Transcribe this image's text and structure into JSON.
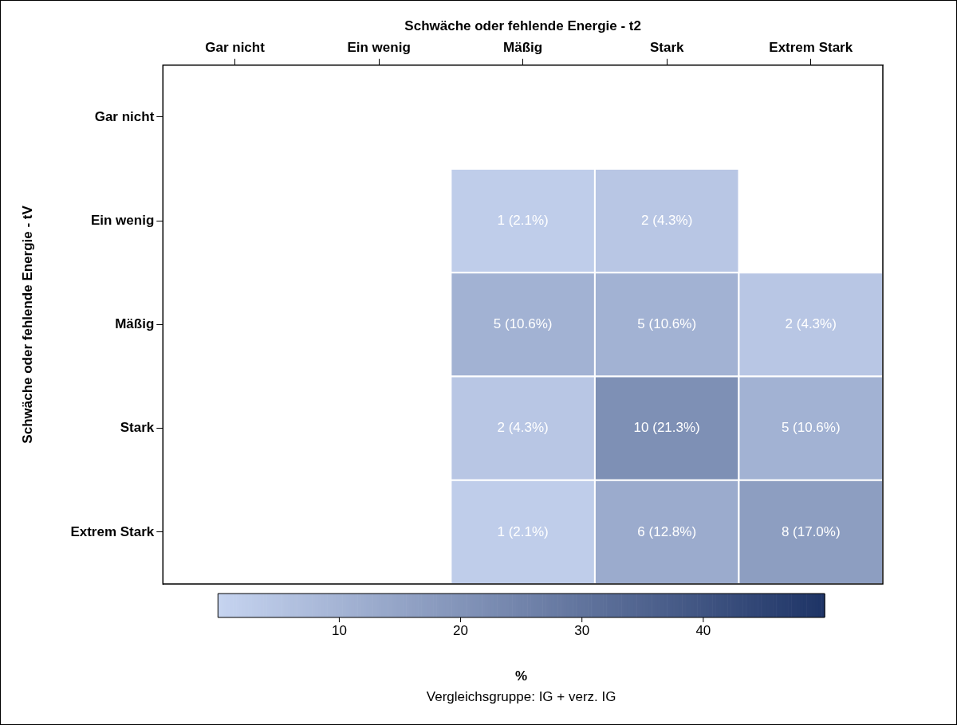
{
  "chart_data": {
    "type": "heatmap",
    "xlabel": "Schwäche oder fehlende Energie - t2",
    "ylabel": "Schwäche oder fehlende Energie - tV",
    "clabel": "%",
    "categories": [
      "Gar nicht",
      "Ein wenig",
      "Mäßig",
      "Stark",
      "Extrem Stark"
    ],
    "y_categories": [
      "Gar nicht",
      "Ein wenig",
      "Mäßig",
      "Stark",
      "Extrem Stark"
    ],
    "cells": [
      [
        null,
        null,
        null,
        null,
        null
      ],
      [
        null,
        null,
        2.1,
        4.3,
        null
      ],
      [
        null,
        null,
        10.6,
        10.6,
        4.3
      ],
      [
        null,
        null,
        4.3,
        21.3,
        10.6
      ],
      [
        null,
        null,
        2.1,
        12.8,
        17.0
      ]
    ],
    "cell_labels": [
      [
        null,
        null,
        null,
        null,
        null
      ],
      [
        null,
        null,
        "1 (2.1%)",
        "2 (4.3%)",
        null
      ],
      [
        null,
        null,
        "5 (10.6%)",
        "5 (10.6%)",
        "2 (4.3%)"
      ],
      [
        null,
        null,
        "2 (4.3%)",
        "10 (21.3%)",
        "5 (10.6%)"
      ],
      [
        null,
        null,
        "1 (2.1%)",
        "6 (12.8%)",
        "8 (17.0%)"
      ]
    ],
    "clim": [
      0,
      50
    ],
    "cticks": [
      10,
      20,
      30,
      40
    ],
    "annotations": [
      "Vergleichsgruppe: IG + verz. IG"
    ]
  }
}
